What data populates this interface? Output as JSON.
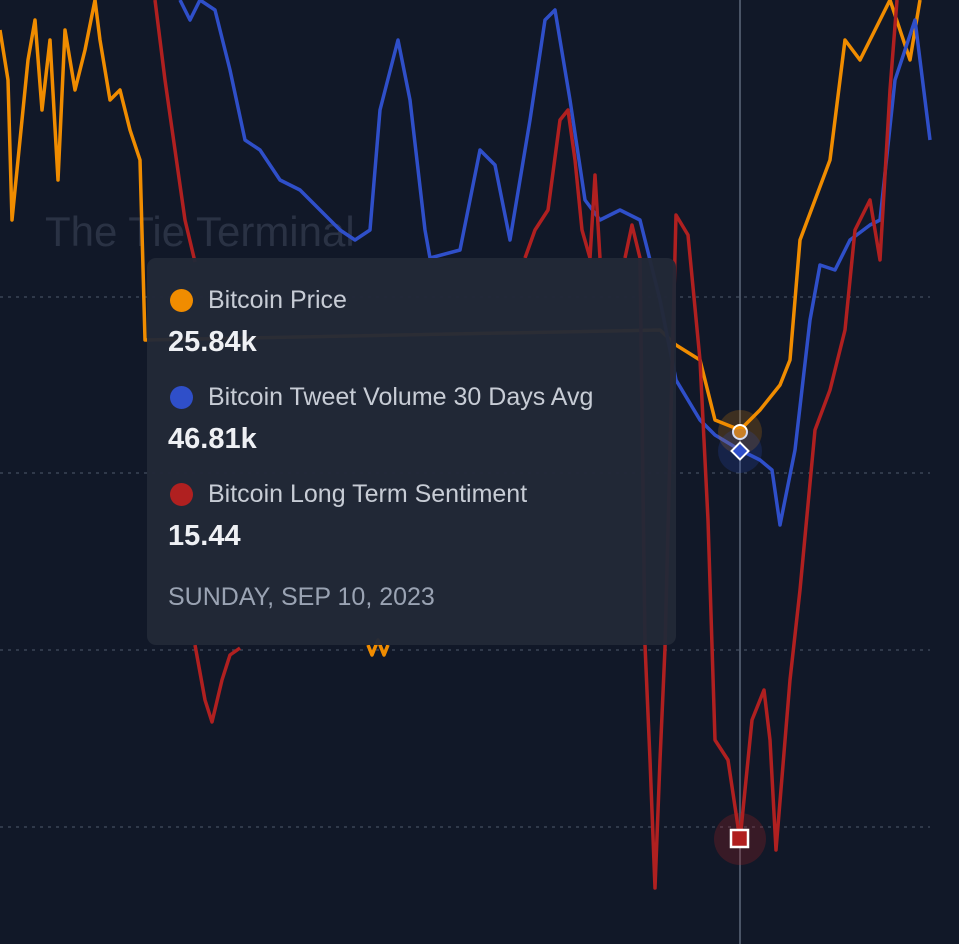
{
  "watermark": "The Tie Terminal",
  "tooltip": {
    "items": [
      {
        "label": "Bitcoin Price",
        "value": "25.84k",
        "color": "#f08c00"
      },
      {
        "label": "Bitcoin Tweet Volume 30 Days Avg",
        "value": "46.81k",
        "color": "#2f4fc9"
      },
      {
        "label": "Bitcoin Long Term Sentiment",
        "value": "15.44",
        "color": "#b02020"
      }
    ],
    "date": "SUNDAY, SEP 10, 2023"
  }
}
